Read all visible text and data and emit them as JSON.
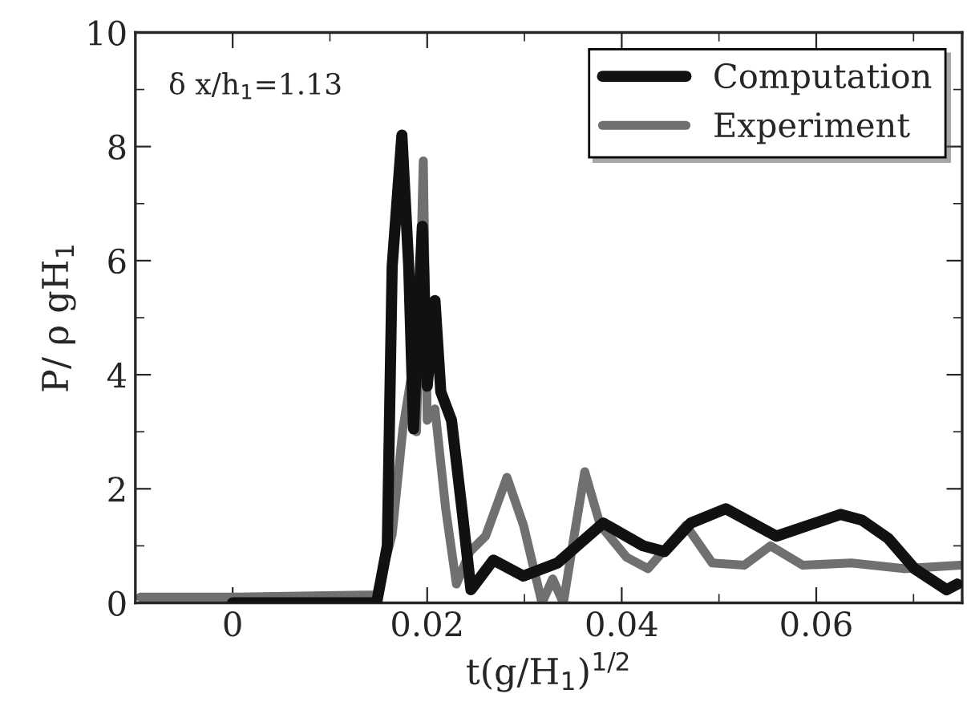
{
  "chart_data": {
    "type": "line",
    "xlabel": "t(g/H$_{1}$)$^{1/2}$",
    "ylabel": "P/ ρ gH$_{1}$",
    "annotations": [
      "δ x/h$_{1}$=1.13"
    ],
    "xlim": [
      -0.01,
      0.075
    ],
    "ylim": [
      0,
      10
    ],
    "xticks": [
      0,
      0.02,
      0.04,
      0.06
    ],
    "yticks": [
      0,
      2,
      4,
      6,
      8,
      10
    ],
    "grid": false,
    "legend": "top right",
    "series": [
      {
        "name": "Computation",
        "color": "#111111",
        "x": [
          0,
          0.0148,
          0.0159,
          0.0164,
          0.0174,
          0.0181,
          0.0186,
          0.0195,
          0.02,
          0.0208,
          0.0214,
          0.0225,
          0.0236,
          0.0245,
          0.0268,
          0.0299,
          0.0334,
          0.0381,
          0.0422,
          0.0444,
          0.0471,
          0.0507,
          0.0559,
          0.0625,
          0.0647,
          0.0674,
          0.0701,
          0.0734,
          0.0745
        ],
        "values": [
          0,
          0,
          1.0,
          5.9,
          8.2,
          5.9,
          3.05,
          6.6,
          3.8,
          5.3,
          3.7,
          3.2,
          1.6,
          0.23,
          0.75,
          0.47,
          0.7,
          1.4,
          1.0,
          0.9,
          1.4,
          1.65,
          1.17,
          1.55,
          1.45,
          1.13,
          0.6,
          0.23,
          0.33
        ]
      },
      {
        "name": "Experiment",
        "color": "#707070",
        "x": [
          -0.0095,
          0.0005,
          0.0148,
          0.0164,
          0.0175,
          0.0184,
          0.0189,
          0.0196,
          0.02,
          0.0208,
          0.0219,
          0.023,
          0.0244,
          0.026,
          0.0282,
          0.0299,
          0.0318,
          0.0329,
          0.034,
          0.0351,
          0.0362,
          0.0378,
          0.0405,
          0.0427,
          0.0466,
          0.0493,
          0.0526,
          0.0553,
          0.0586,
          0.0636,
          0.069,
          0.0748
        ],
        "values": [
          0.1,
          0.1,
          0.14,
          1.2,
          3.05,
          4.0,
          3.0,
          7.75,
          3.2,
          3.4,
          1.65,
          0.33,
          0.9,
          1.17,
          2.2,
          1.36,
          0,
          0.42,
          0,
          1.17,
          2.3,
          1.36,
          0.8,
          0.6,
          1.36,
          0.7,
          0.66,
          1.0,
          0.66,
          0.7,
          0.6,
          0.66
        ]
      }
    ]
  }
}
